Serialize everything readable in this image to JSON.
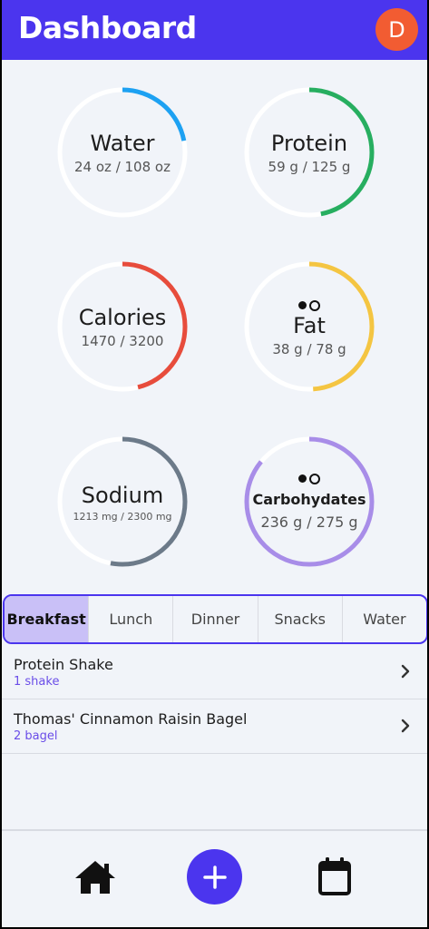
{
  "appbar": {
    "title": "Dashboard",
    "avatar_letter": "D",
    "accent": "#4b35ee",
    "avatar_color": "#f25c32"
  },
  "rings": [
    {
      "label": "Water",
      "value": "24 oz / 108 oz",
      "progress": 0.22,
      "color": "#1da1f2",
      "icon": ""
    },
    {
      "label": "Protein",
      "value": "59 g / 125 g",
      "progress": 0.47,
      "color": "#27ae60",
      "icon": ""
    },
    {
      "label": "Calories",
      "value": "1470 / 3200",
      "progress": 0.46,
      "color": "#e74c3c",
      "icon": ""
    },
    {
      "label": "Fat",
      "value": "38 g / 78 g",
      "progress": 0.49,
      "color": "#f4c542",
      "icon": "toggle-icon"
    },
    {
      "label": "Sodium",
      "value": "1213 mg / 2300 mg",
      "progress": 0.53,
      "color": "#6c7a89",
      "icon": ""
    },
    {
      "label": "Carbohydates",
      "value": "236 g / 275 g",
      "progress": 0.86,
      "color": "#a88de8",
      "icon": "toggle-icon"
    }
  ],
  "tabs": [
    "Breakfast",
    "Lunch",
    "Dinner",
    "Snacks",
    "Water"
  ],
  "active_tab": "Breakfast",
  "foods": [
    {
      "name": "Protein Shake",
      "qty": "1 shake"
    },
    {
      "name": "Thomas' Cinnamon Raisin Bagel",
      "qty": "2 bagel"
    }
  ],
  "bottom_nav": [
    "home-icon",
    "add-icon",
    "calendar-icon"
  ]
}
